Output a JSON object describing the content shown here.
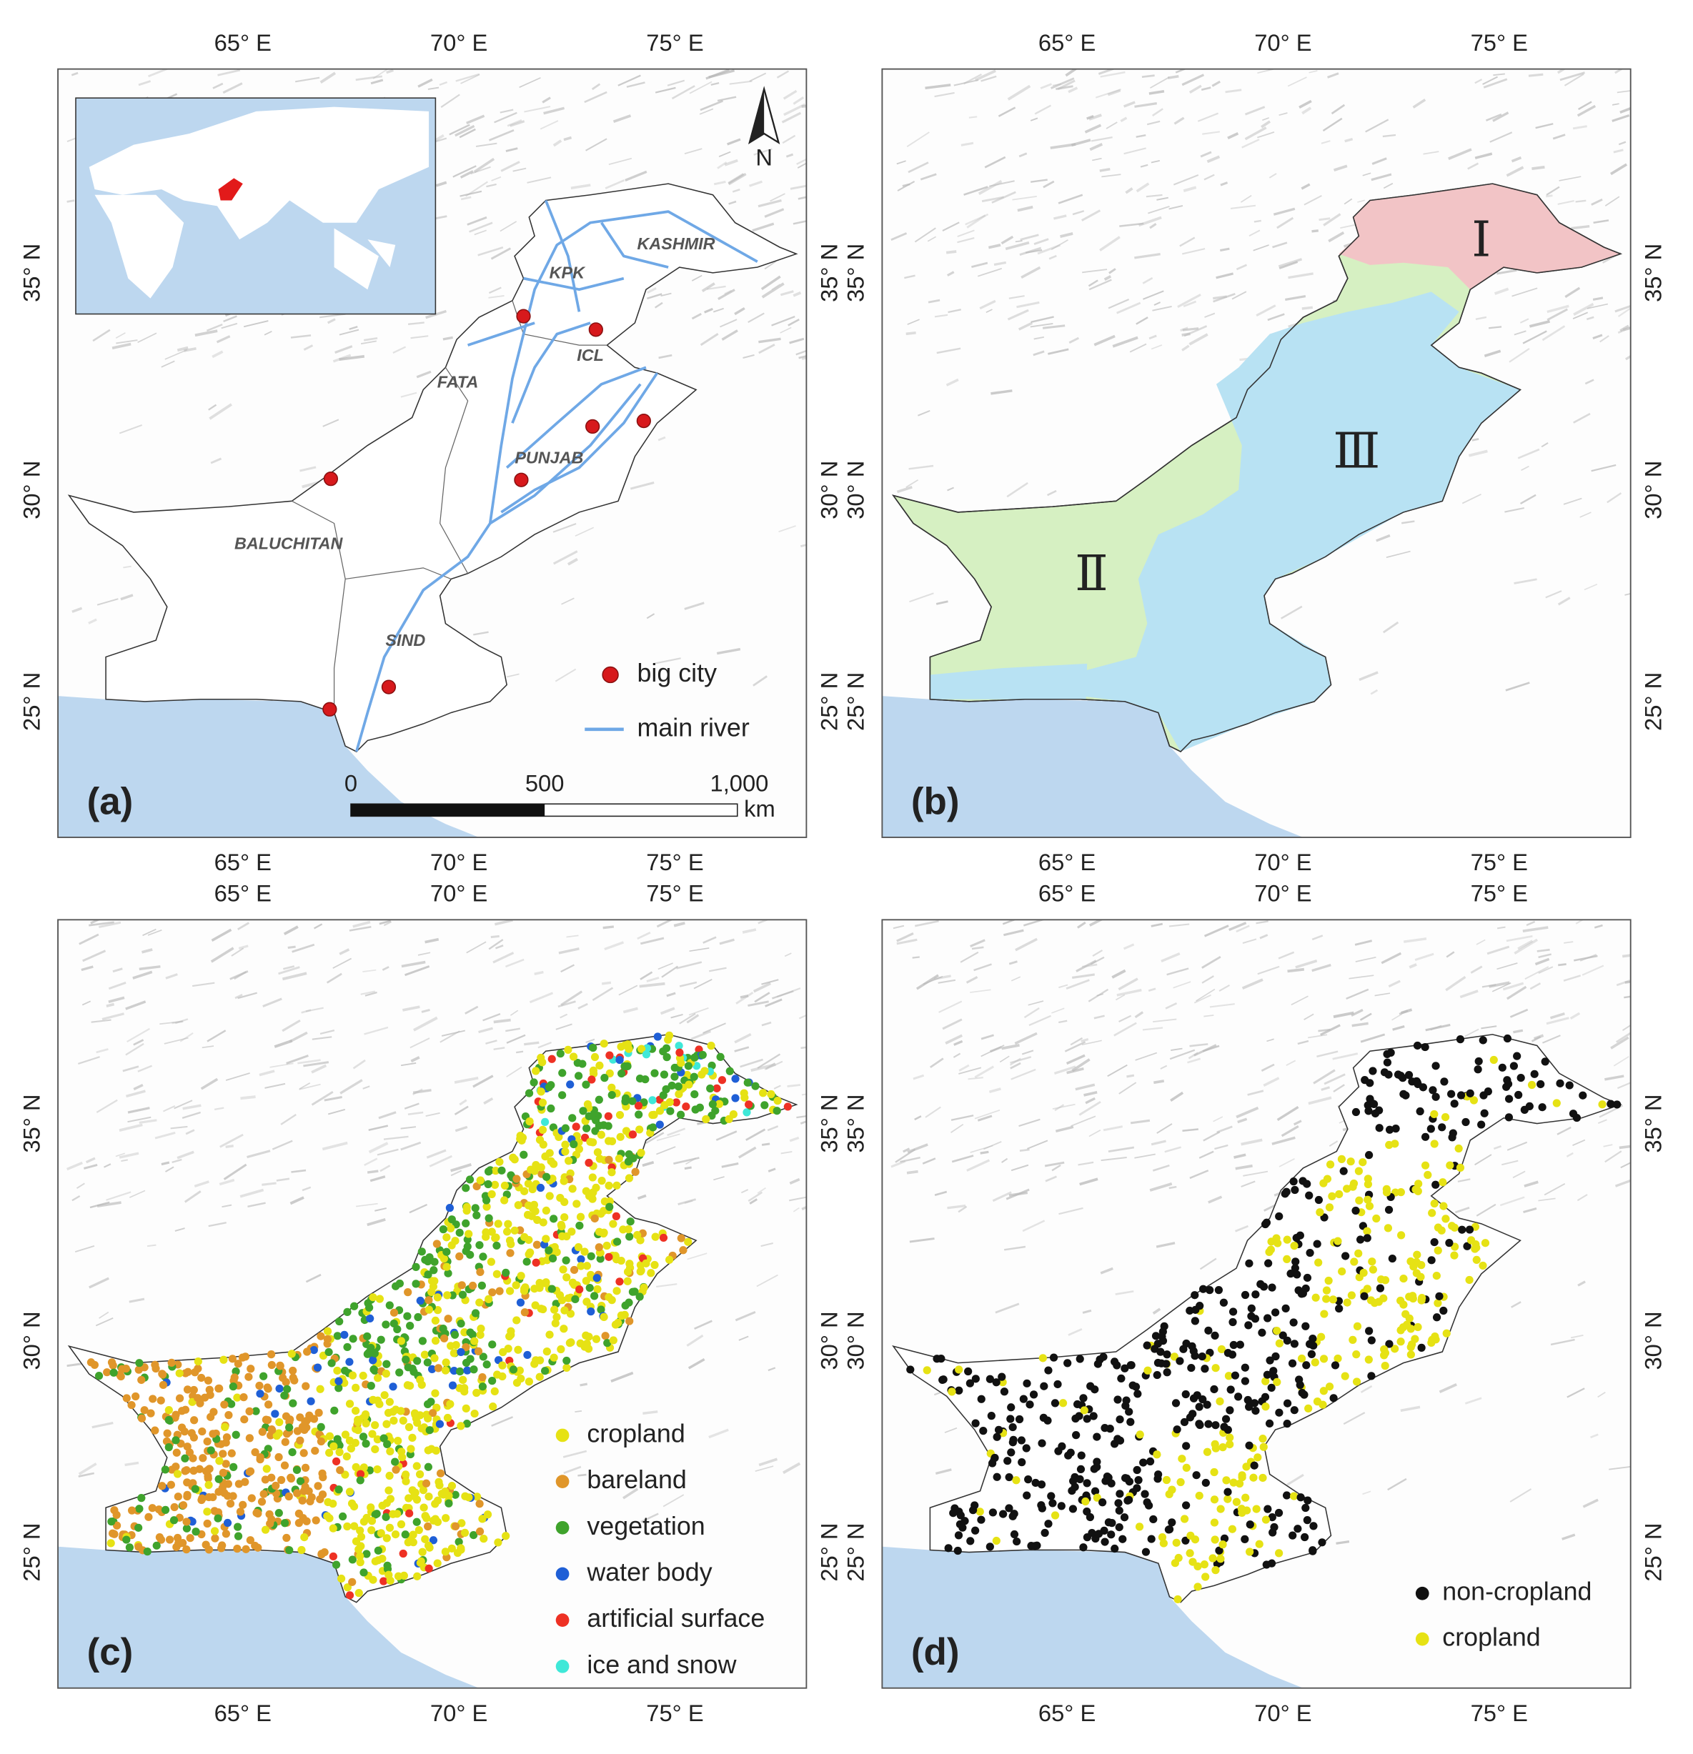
{
  "axis_labels": {
    "longitude": [
      "65° E",
      "70° E",
      "75° E"
    ],
    "latitude": [
      "35° N",
      "30° N",
      "25° N"
    ]
  },
  "panels": [
    {
      "label": "(a)",
      "regions": [
        "KASHMIR",
        "KPK",
        "ICL",
        "FATA",
        "PUNJAB",
        "BALUCHITAN",
        "SIND"
      ],
      "north_arrow": "N",
      "legend": [
        {
          "name": "big city",
          "color": "#d7191c"
        },
        {
          "name": "main river",
          "color": "#6fa8e6"
        }
      ],
      "scale_bar": {
        "ticks": [
          "0",
          "500",
          "1,000"
        ],
        "unit": "km"
      }
    },
    {
      "label": "(b)",
      "zones": [
        {
          "name": "Ⅰ",
          "color": "#f2c4c6"
        },
        {
          "name": "Ⅱ",
          "color": "#d6f0c2"
        },
        {
          "name": "Ⅲ",
          "color": "#b8e2f3"
        }
      ]
    },
    {
      "label": "(c)",
      "legend": [
        {
          "name": "cropland",
          "color": "#e6e214"
        },
        {
          "name": "bareland",
          "color": "#e0962a"
        },
        {
          "name": "vegetation",
          "color": "#3fa32c"
        },
        {
          "name": "water body",
          "color": "#1f5fd6"
        },
        {
          "name": "artificial surface",
          "color": "#ee3124"
        },
        {
          "name": "ice and snow",
          "color": "#3fe8d8"
        }
      ]
    },
    {
      "label": "(d)",
      "legend": [
        {
          "name": "non-cropland",
          "color": "#111111"
        },
        {
          "name": "cropland",
          "color": "#e6e214"
        }
      ]
    }
  ]
}
